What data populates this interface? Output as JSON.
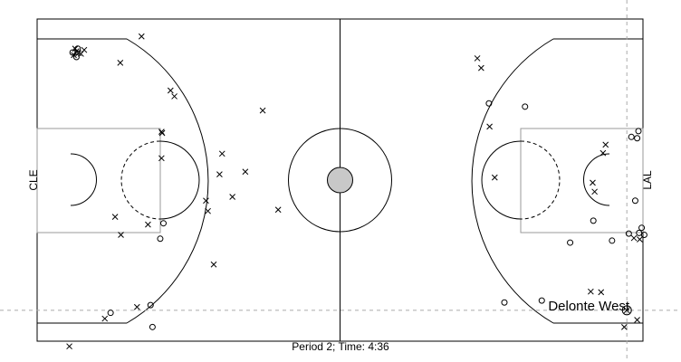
{
  "chart_data": {
    "type": "scatter",
    "title": "",
    "footer": "Period 2; Time: 4:36",
    "left_team": "CLE",
    "right_team": "LAL",
    "highlight_player": "Delonte West",
    "highlight_point": [
      91.5,
      45.2
    ],
    "guide_lines": {
      "x": 91.5,
      "y": 45.2
    },
    "axes": {
      "x_range": [
        0,
        94
      ],
      "y_range": [
        0,
        50
      ]
    },
    "legend": {
      "made": "circle",
      "missed": "cross"
    },
    "series": [
      {
        "name": "missed",
        "points": [
          [
            5.0,
            50.8
          ],
          [
            13.0,
            33.5
          ],
          [
            10.5,
            46.5
          ],
          [
            12.1,
            30.7
          ],
          [
            15.5,
            44.7
          ],
          [
            27.4,
            38.1
          ],
          [
            26.5,
            29.8
          ],
          [
            19.3,
            21.6
          ],
          [
            19.4,
            17.7
          ],
          [
            28.3,
            24.1
          ],
          [
            20.7,
            11.1
          ],
          [
            21.3,
            12.0
          ],
          [
            28.7,
            20.9
          ],
          [
            26.2,
            28.2
          ],
          [
            32.3,
            23.7
          ],
          [
            30.3,
            27.6
          ],
          [
            37.4,
            29.6
          ],
          [
            16.2,
            2.7
          ],
          [
            12.9,
            6.8
          ],
          [
            7.3,
            4.8
          ],
          [
            6.4,
            5.3
          ],
          [
            6.8,
            5.4
          ],
          [
            5.7,
            5.6
          ],
          [
            6.1,
            5.0
          ],
          [
            5.9,
            4.6
          ],
          [
            35.0,
            14.2
          ],
          [
            17.2,
            31.9
          ],
          [
            19.3,
            17.5
          ],
          [
            68.3,
            6.1
          ],
          [
            68.9,
            7.6
          ],
          [
            70.2,
            16.7
          ],
          [
            71.0,
            24.6
          ],
          [
            85.9,
            42.3
          ],
          [
            87.5,
            42.4
          ],
          [
            86.2,
            25.4
          ],
          [
            86.5,
            26.8
          ],
          [
            93.1,
            46.7
          ],
          [
            91.5,
            45.2
          ],
          [
            91.1,
            47.8
          ],
          [
            87.8,
            20.8
          ],
          [
            88.2,
            19.5
          ],
          [
            92.6,
            34.0
          ],
          [
            93.5,
            34.2
          ]
        ]
      },
      {
        "name": "made",
        "points": [
          [
            17.9,
            47.8
          ],
          [
            17.6,
            44.4
          ],
          [
            11.4,
            45.6
          ],
          [
            19.1,
            34.1
          ],
          [
            19.6,
            31.7
          ],
          [
            6.1,
            5.9
          ],
          [
            6.3,
            4.6
          ],
          [
            5.5,
            5.2
          ],
          [
            70.1,
            13.1
          ],
          [
            75.7,
            13.6
          ],
          [
            78.3,
            43.7
          ],
          [
            82.7,
            34.7
          ],
          [
            86.3,
            31.3
          ],
          [
            89.2,
            34.4
          ],
          [
            91.8,
            33.3
          ],
          [
            92.8,
            28.2
          ],
          [
            92.2,
            18.3
          ],
          [
            93.1,
            18.5
          ],
          [
            93.3,
            17.4
          ],
          [
            72.5,
            44.0
          ],
          [
            93.4,
            33.2
          ],
          [
            93.8,
            32.4
          ],
          [
            94.2,
            33.5
          ]
        ]
      }
    ]
  }
}
